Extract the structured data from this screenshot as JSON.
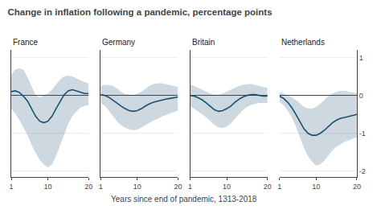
{
  "chart_data": {
    "type": "line",
    "title": "Change in inflation following a pandemic, percentage points",
    "xlabel": "Years since end of pandemic, 1313-2018",
    "x": [
      1,
      2,
      3,
      4,
      5,
      6,
      7,
      8,
      9,
      10,
      11,
      12,
      13,
      14,
      15,
      16,
      17,
      18,
      19,
      20
    ],
    "series": [
      {
        "name": "France",
        "color": "#1a4f72",
        "values": [
          0.1,
          0.12,
          0.08,
          -0.02,
          -0.15,
          -0.35,
          -0.55,
          -0.68,
          -0.72,
          -0.68,
          -0.55,
          -0.35,
          -0.15,
          0.02,
          0.12,
          0.15,
          0.12,
          0.08,
          0.05,
          0.05
        ],
        "upper": [
          0.55,
          0.68,
          0.72,
          0.68,
          0.48,
          0.22,
          0.0,
          -0.05,
          0.0,
          0.05,
          0.15,
          0.28,
          0.42,
          0.5,
          0.52,
          0.5,
          0.45,
          0.4,
          0.35,
          0.32
        ],
        "lower": [
          -0.35,
          -0.48,
          -0.65,
          -0.85,
          -1.05,
          -1.3,
          -1.52,
          -1.7,
          -1.82,
          -1.9,
          -1.82,
          -1.6,
          -1.32,
          -1.02,
          -0.75,
          -0.55,
          -0.42,
          -0.32,
          -0.28,
          -0.26
        ]
      },
      {
        "name": "Germany",
        "color": "#1a4f72",
        "values": [
          0.02,
          0.0,
          -0.05,
          -0.12,
          -0.2,
          -0.28,
          -0.35,
          -0.4,
          -0.42,
          -0.4,
          -0.35,
          -0.28,
          -0.22,
          -0.18,
          -0.15,
          -0.12,
          -0.1,
          -0.08,
          -0.06,
          -0.04
        ],
        "upper": [
          0.25,
          0.28,
          0.28,
          0.25,
          0.18,
          0.1,
          0.04,
          0.02,
          0.02,
          0.05,
          0.1,
          0.18,
          0.25,
          0.3,
          0.32,
          0.32,
          0.3,
          0.28,
          0.25,
          0.22
        ],
        "lower": [
          -0.2,
          -0.28,
          -0.4,
          -0.55,
          -0.68,
          -0.78,
          -0.85,
          -0.9,
          -0.92,
          -0.9,
          -0.85,
          -0.78,
          -0.72,
          -0.66,
          -0.62,
          -0.56,
          -0.52,
          -0.48,
          -0.44,
          -0.4
        ]
      },
      {
        "name": "Britain",
        "color": "#1a4f72",
        "values": [
          0.0,
          -0.02,
          -0.06,
          -0.12,
          -0.2,
          -0.3,
          -0.38,
          -0.42,
          -0.4,
          -0.35,
          -0.28,
          -0.18,
          -0.1,
          -0.04,
          0.0,
          0.02,
          0.02,
          0.0,
          -0.02,
          -0.02
        ],
        "upper": [
          0.28,
          0.25,
          0.2,
          0.15,
          0.1,
          0.05,
          0.02,
          0.02,
          0.05,
          0.1,
          0.15,
          0.2,
          0.25,
          0.28,
          0.3,
          0.3,
          0.28,
          0.25,
          0.22,
          0.2
        ],
        "lower": [
          -0.28,
          -0.35,
          -0.42,
          -0.5,
          -0.58,
          -0.68,
          -0.78,
          -0.84,
          -0.86,
          -0.82,
          -0.74,
          -0.62,
          -0.5,
          -0.38,
          -0.3,
          -0.25,
          -0.22,
          -0.2,
          -0.2,
          -0.2
        ]
      },
      {
        "name": "Netherlands",
        "color": "#1a4f72",
        "values": [
          -0.02,
          -0.08,
          -0.18,
          -0.32,
          -0.5,
          -0.7,
          -0.88,
          -1.0,
          -1.05,
          -1.05,
          -1.0,
          -0.92,
          -0.82,
          -0.72,
          -0.65,
          -0.6,
          -0.58,
          -0.55,
          -0.52,
          -0.5
        ],
        "upper": [
          0.08,
          0.05,
          0.0,
          -0.05,
          -0.12,
          -0.22,
          -0.3,
          -0.35,
          -0.35,
          -0.3,
          -0.22,
          -0.12,
          -0.02,
          0.05,
          0.1,
          0.12,
          0.12,
          0.1,
          0.08,
          0.06
        ],
        "lower": [
          -0.18,
          -0.26,
          -0.4,
          -0.58,
          -0.82,
          -1.1,
          -1.38,
          -1.6,
          -1.75,
          -1.85,
          -1.82,
          -1.72,
          -1.58,
          -1.45,
          -1.35,
          -1.28,
          -1.22,
          -1.18,
          -1.14,
          -1.1
        ]
      }
    ],
    "xlim": [
      1,
      20
    ],
    "xticks": [
      1,
      10,
      20
    ],
    "ylim": [
      -2.15,
      1.2
    ],
    "yticks": [
      -2,
      -1,
      0,
      1
    ],
    "grid": true
  }
}
